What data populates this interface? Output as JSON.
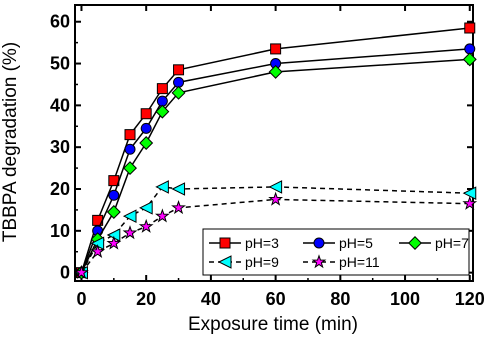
{
  "chart_data": {
    "type": "line",
    "title": "",
    "xlabel": "Exposure time (min)",
    "ylabel": "TBBPA degradation (%)",
    "xlim": [
      -2,
      121
    ],
    "ylim": [
      -2,
      64
    ],
    "xticks": [
      0,
      20,
      40,
      60,
      80,
      100,
      120
    ],
    "yticks": [
      0,
      10,
      20,
      30,
      40,
      50,
      60
    ],
    "xtick_labels": [
      "0",
      "20",
      "40",
      "60",
      "80",
      "100",
      "120"
    ],
    "ytick_labels": [
      "0",
      "10",
      "20",
      "30",
      "40",
      "50",
      "60"
    ],
    "grid": false,
    "legend_position": "bottom-right",
    "series": [
      {
        "name": "pH=3",
        "color": "#ff0000",
        "marker": "square",
        "line_style": "solid",
        "x": [
          0,
          5,
          10,
          15,
          20,
          25,
          30,
          60,
          120
        ],
        "y": [
          0,
          12.5,
          22,
          33,
          38,
          44,
          48.5,
          53.5,
          58.5
        ]
      },
      {
        "name": "pH=5",
        "color": "#0000ff",
        "marker": "circle",
        "line_style": "solid",
        "x": [
          0,
          5,
          10,
          15,
          20,
          25,
          30,
          60,
          120
        ],
        "y": [
          0,
          10,
          18.5,
          29.5,
          34.5,
          41,
          45.5,
          50,
          53.5
        ]
      },
      {
        "name": "pH=7",
        "color": "#00ff00",
        "marker": "diamond",
        "line_style": "solid",
        "x": [
          0,
          5,
          10,
          15,
          20,
          25,
          30,
          60,
          120
        ],
        "y": [
          0,
          8,
          14.5,
          25,
          31,
          38.5,
          43,
          48,
          51
        ]
      },
      {
        "name": "pH=9",
        "color": "#00ffff",
        "marker": "triangle-left",
        "line_style": "dashed",
        "x": [
          0,
          5,
          10,
          15,
          20,
          25,
          30,
          60,
          120
        ],
        "y": [
          0,
          7,
          9,
          13.5,
          15.5,
          20.5,
          20,
          20.5,
          19
        ]
      },
      {
        "name": "pH=11",
        "color": "#ff00ff",
        "marker": "star",
        "line_style": "dashed",
        "x": [
          0,
          5,
          10,
          15,
          20,
          25,
          30,
          60,
          120
        ],
        "y": [
          0,
          5,
          7,
          9.5,
          11,
          13.5,
          15.5,
          17.5,
          16.5
        ]
      }
    ]
  }
}
